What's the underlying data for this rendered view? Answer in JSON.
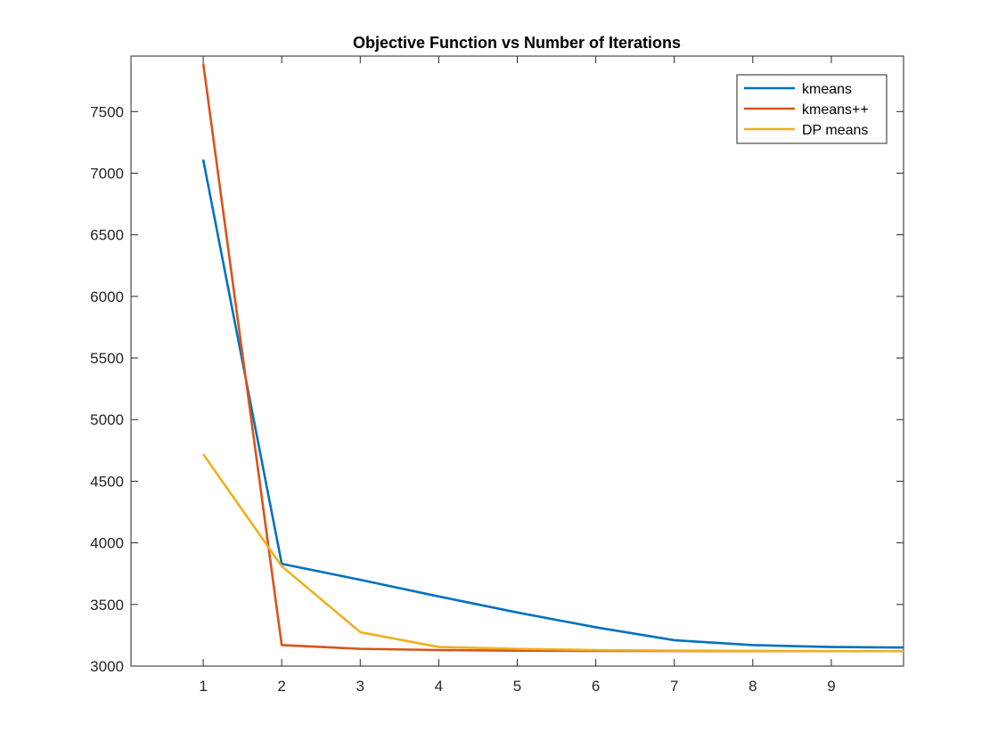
{
  "chart_data": {
    "type": "line",
    "title": "Objective Function vs Number of  Iterations",
    "xlabel": "",
    "ylabel": "",
    "xlim": [
      0.08,
      9.92
    ],
    "ylim": [
      3000,
      7950
    ],
    "x_ticks": [
      1,
      2,
      3,
      4,
      5,
      6,
      7,
      8,
      9
    ],
    "y_ticks": [
      3000,
      3500,
      4000,
      4500,
      5000,
      5500,
      6000,
      6500,
      7000,
      7500
    ],
    "grid": false,
    "legend_position": "top-right",
    "x": [
      1,
      2,
      3,
      4,
      5,
      6,
      7,
      8,
      9,
      10
    ],
    "series": [
      {
        "name": "kmeans",
        "color": "#0072BD",
        "values": [
          7110,
          3830,
          3700,
          3565,
          3435,
          3315,
          3210,
          3170,
          3155,
          3150
        ]
      },
      {
        "name": "kmeans++",
        "color": "#D95319",
        "values": [
          7890,
          3170,
          3140,
          3130,
          3125,
          3123,
          3122,
          3121,
          3121,
          3121
        ]
      },
      {
        "name": "DP means",
        "color": "#EDB120",
        "values": [
          4720,
          3810,
          3275,
          3155,
          3140,
          3130,
          3125,
          3123,
          3122,
          3121
        ]
      }
    ]
  }
}
